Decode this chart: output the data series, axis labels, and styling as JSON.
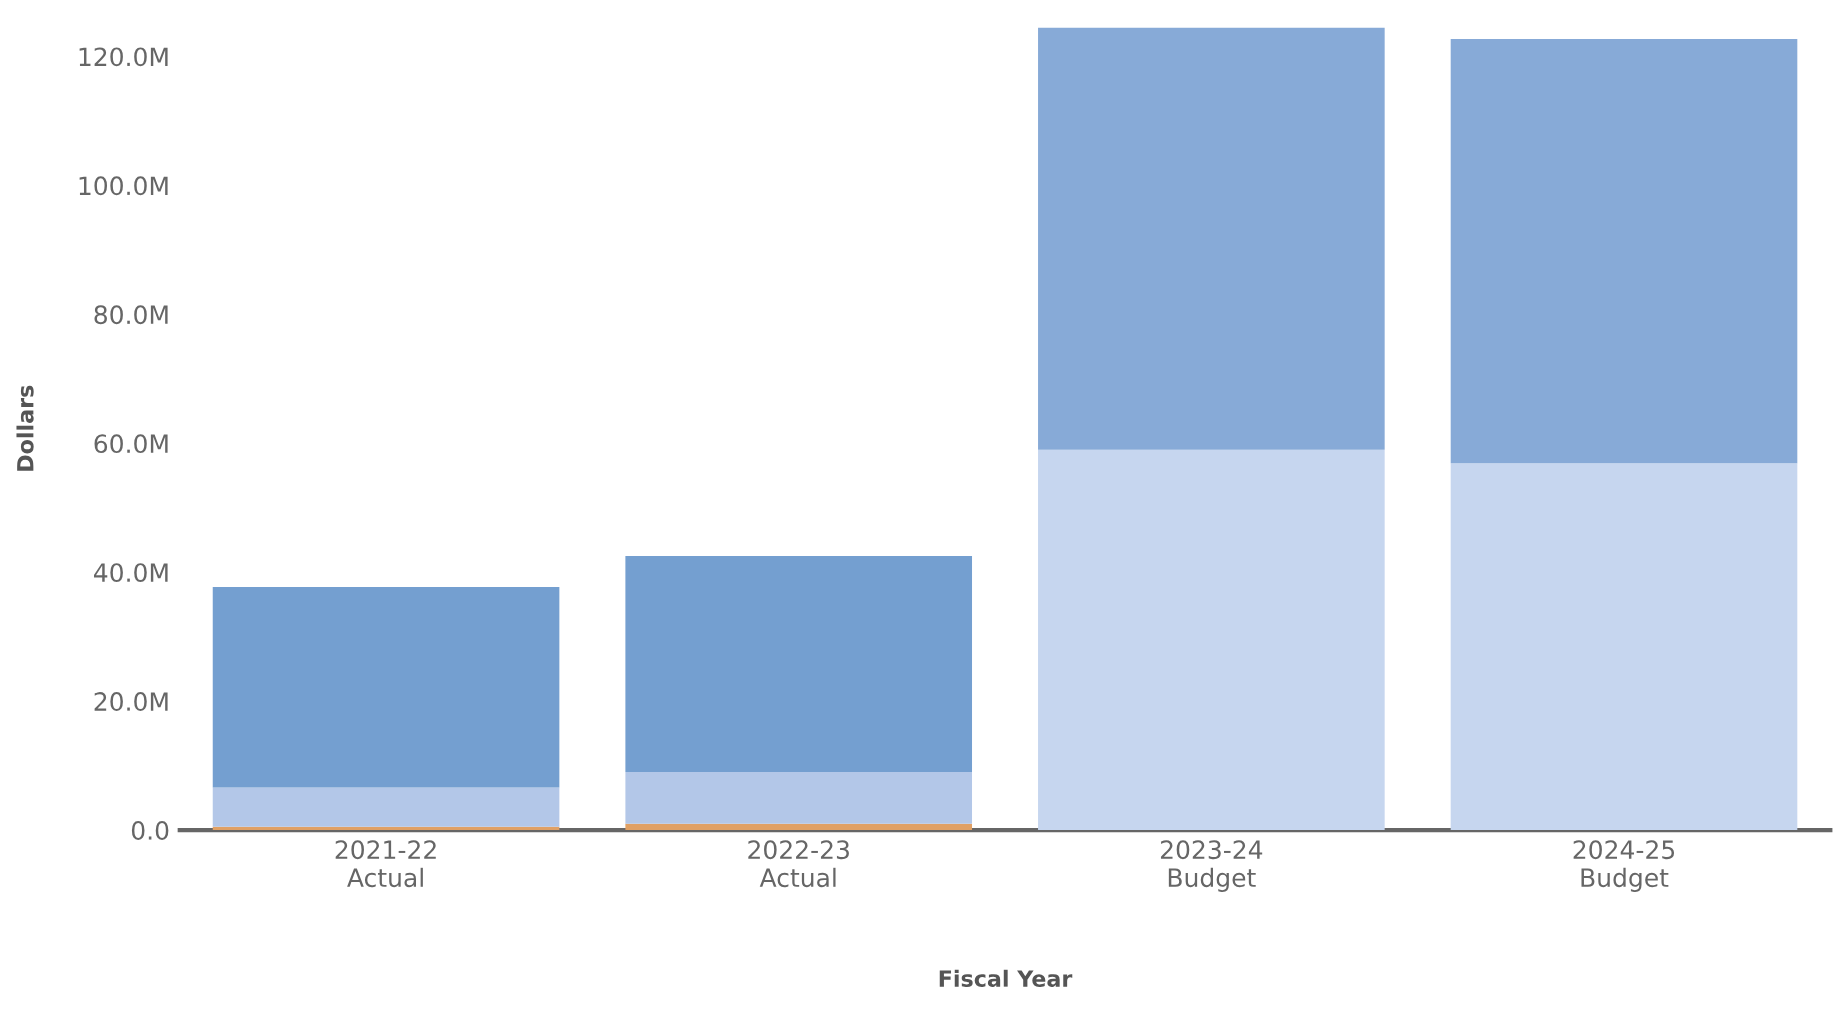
{
  "chart_data": {
    "type": "bar",
    "stacked": true,
    "xlabel": "Fiscal Year",
    "ylabel": "Dollars",
    "categories": [
      "2021-22\nActual",
      "2022-23\nActual",
      "2023-24\nBudget",
      "2024-25\nBudget"
    ],
    "series": [
      {
        "colors": [
          "#e0a064",
          "#e0a064",
          "#e0a064",
          "#e0a064"
        ],
        "values": [
          0.5,
          1.0,
          0,
          0
        ]
      },
      {
        "colors": [
          "#b3c7e8",
          "#b3c7e8",
          "#c6d6ef",
          "#c6d6ef"
        ],
        "values": [
          6.1,
          8.0,
          59.0,
          56.9
        ]
      },
      {
        "colors": [
          "#749fd0",
          "#749fd0",
          "#87aad7",
          "#87aad7"
        ],
        "values": [
          31.1,
          33.5,
          65.5,
          65.8
        ]
      }
    ],
    "ylim": [
      0,
      124.5
    ],
    "yticks": [
      {
        "value": 0,
        "label": "0.0"
      },
      {
        "value": 20,
        "label": "20.0M"
      },
      {
        "value": 40,
        "label": "40.0M"
      },
      {
        "value": 60,
        "label": "60.0M"
      },
      {
        "value": 80,
        "label": "80.0M"
      },
      {
        "value": 100,
        "label": "100.0M"
      },
      {
        "value": 120,
        "label": "120.0M"
      }
    ],
    "grid": false,
    "legend": false
  }
}
